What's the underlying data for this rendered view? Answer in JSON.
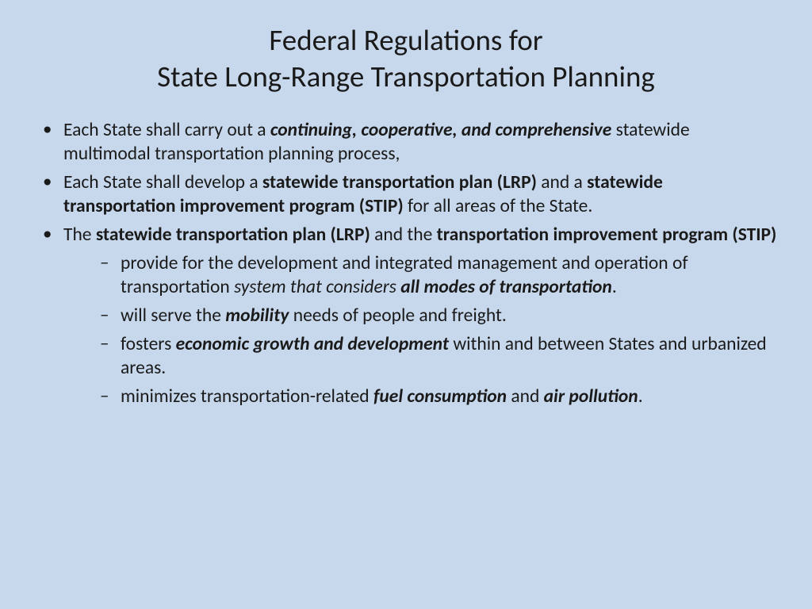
{
  "colors": {
    "background": "#c7d8ec",
    "title": "#1a1a1a",
    "body": "#1a1a1a"
  },
  "typography": {
    "title_fontsize": 37,
    "body_fontsize": 23.5,
    "font_family": "Calibri"
  },
  "title": {
    "line1": "Federal  Regulations for",
    "line2": "State Long-Range Transportation Planning"
  },
  "bullets": [
    {
      "segments": [
        {
          "text": "Each State  shall carry out a ",
          "style": "normal"
        },
        {
          "text": "continuing, cooperative, and comprehensive",
          "style": "boldital"
        },
        {
          "text": " statewide multimodal transportation planning process,",
          "style": "normal"
        }
      ]
    },
    {
      "segments": [
        {
          "text": "Each State shall develop a ",
          "style": "normal"
        },
        {
          "text": "statewide transportation plan (LRP) ",
          "style": "bold"
        },
        {
          "text": "and a ",
          "style": "normal"
        },
        {
          "text": "statewide transportation improvement program  (STIP) ",
          "style": "bold"
        },
        {
          "text": "for all areas of the State.",
          "style": "normal"
        }
      ]
    },
    {
      "segments": [
        {
          "text": "The ",
          "style": "normal"
        },
        {
          "text": "statewide transportation plan (LRP) ",
          "style": "bold"
        },
        {
          "text": "and the ",
          "style": "normal"
        },
        {
          "text": "transportation improvement program (STIP)",
          "style": "bold"
        }
      ],
      "children": [
        {
          "segments": [
            {
              "text": "provide for the development and integrated management and operation of transportation ",
              "style": "normal"
            },
            {
              "text": "system that considers ",
              "style": "ital"
            },
            {
              "text": "all modes of transportation",
              "style": "boldital"
            },
            {
              "text": ".",
              "style": "normal"
            }
          ]
        },
        {
          "segments": [
            {
              "text": "will serve the ",
              "style": "normal"
            },
            {
              "text": "mobility",
              "style": "boldital"
            },
            {
              "text": " needs of people and freight.",
              "style": "normal"
            }
          ]
        },
        {
          "segments": [
            {
              "text": " fosters ",
              "style": "normal"
            },
            {
              "text": "economic growth and development",
              "style": "boldital"
            },
            {
              "text": " within and between States and urbanized areas.",
              "style": "normal"
            }
          ]
        },
        {
          "segments": [
            {
              "text": "minimizes transportation-related ",
              "style": "normal"
            },
            {
              "text": "fuel consumption",
              "style": "boldital"
            },
            {
              "text": " and ",
              "style": "normal"
            },
            {
              "text": "air pollution",
              "style": "boldital"
            },
            {
              "text": ".",
              "style": "normal"
            }
          ]
        }
      ]
    }
  ]
}
